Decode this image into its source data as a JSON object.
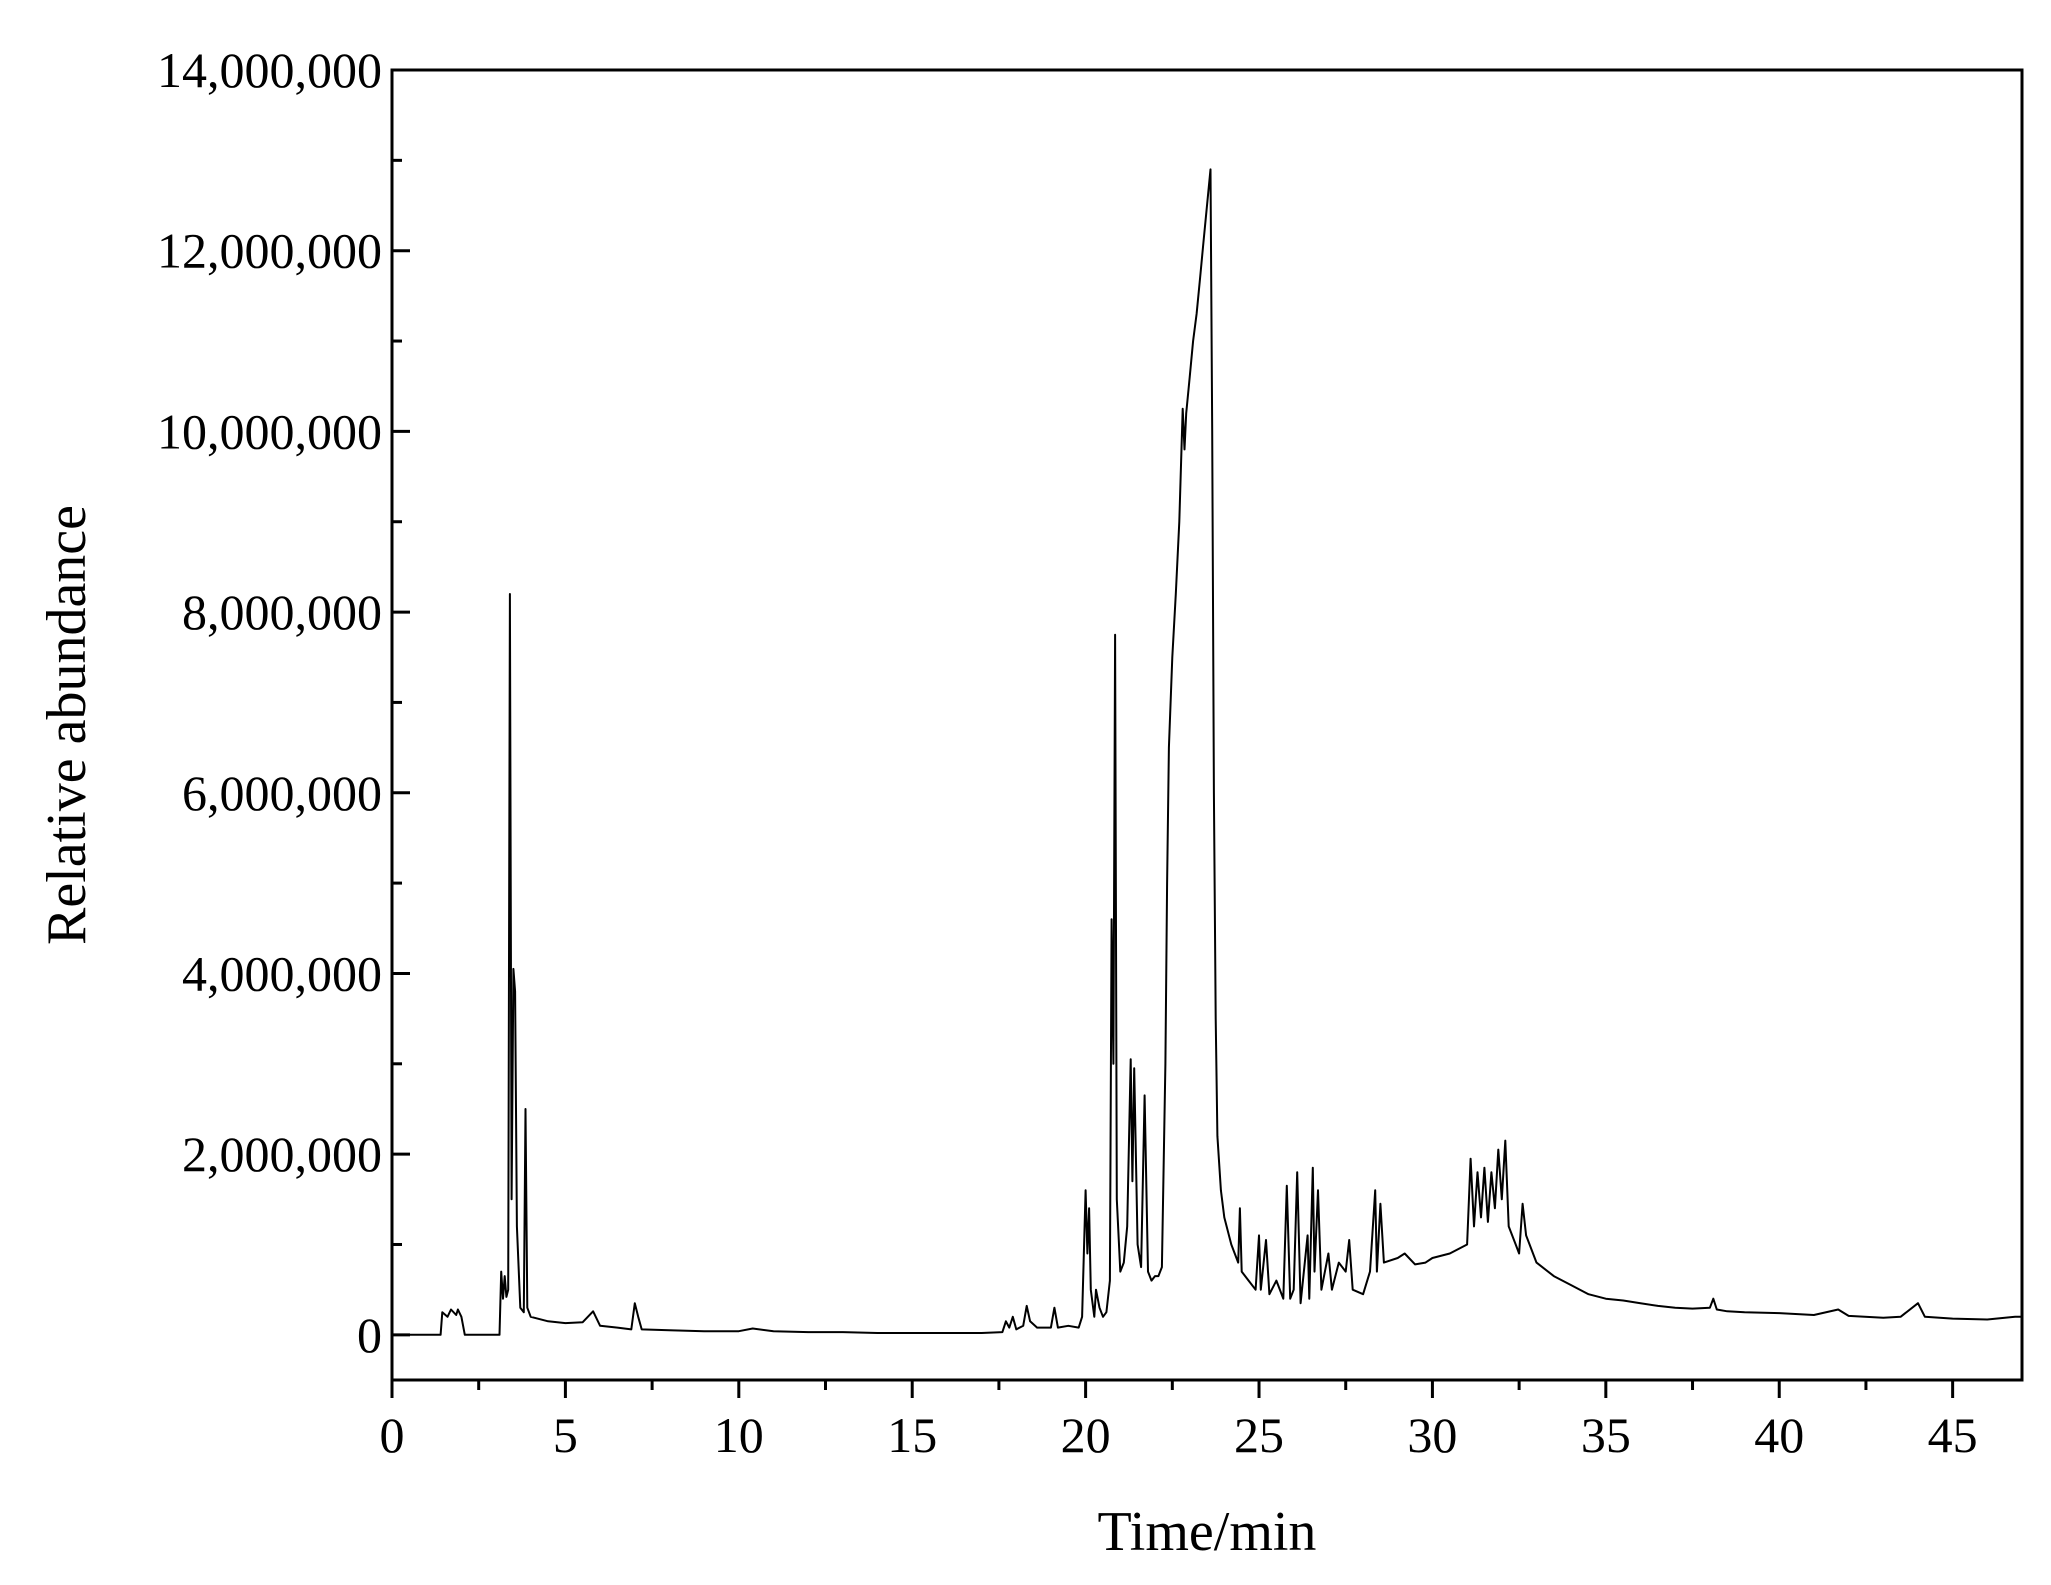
{
  "chart_data": {
    "type": "line",
    "title": "",
    "xlabel": "Time/min",
    "ylabel": "Relative abundance",
    "xlim": [
      0,
      47
    ],
    "ylim": [
      -500000,
      14000000
    ],
    "x_ticks": [
      0,
      5,
      10,
      15,
      20,
      25,
      30,
      35,
      40,
      45
    ],
    "x_tick_labels": [
      "0",
      "5",
      "10",
      "15",
      "20",
      "25",
      "30",
      "35",
      "40",
      "45"
    ],
    "y_ticks": [
      0,
      2000000,
      4000000,
      6000000,
      8000000,
      10000000,
      12000000,
      14000000
    ],
    "y_tick_labels": [
      "0",
      "2,000,000",
      "4,000,000",
      "6,000,000",
      "8,000,000",
      "10,000,000",
      "12,000,000",
      "14,000,000"
    ],
    "grid": false,
    "legend": "none",
    "series": [
      {
        "color": "#000000",
        "points": [
          [
            0,
            0
          ],
          [
            1.4,
            0
          ],
          [
            1.45,
            250000
          ],
          [
            1.6,
            200000
          ],
          [
            1.7,
            280000
          ],
          [
            1.85,
            220000
          ],
          [
            1.9,
            280000
          ],
          [
            2.0,
            200000
          ],
          [
            2.1,
            0
          ],
          [
            3.1,
            0
          ],
          [
            3.15,
            700000
          ],
          [
            3.2,
            400000
          ],
          [
            3.25,
            650000
          ],
          [
            3.3,
            420000
          ],
          [
            3.35,
            500000
          ],
          [
            3.4,
            8200000
          ],
          [
            3.45,
            1500000
          ],
          [
            3.5,
            4050000
          ],
          [
            3.55,
            3800000
          ],
          [
            3.6,
            1200000
          ],
          [
            3.7,
            300000
          ],
          [
            3.8,
            250000
          ],
          [
            3.85,
            2500000
          ],
          [
            3.9,
            300000
          ],
          [
            4.0,
            200000
          ],
          [
            4.5,
            150000
          ],
          [
            5.0,
            130000
          ],
          [
            5.5,
            140000
          ],
          [
            5.8,
            260000
          ],
          [
            6.0,
            100000
          ],
          [
            6.5,
            80000
          ],
          [
            6.9,
            60000
          ],
          [
            7.0,
            350000
          ],
          [
            7.1,
            200000
          ],
          [
            7.2,
            60000
          ],
          [
            8.0,
            50000
          ],
          [
            9.0,
            40000
          ],
          [
            10.0,
            40000
          ],
          [
            10.4,
            70000
          ],
          [
            11.0,
            40000
          ],
          [
            12.0,
            30000
          ],
          [
            13.0,
            30000
          ],
          [
            14.0,
            20000
          ],
          [
            15.0,
            20000
          ],
          [
            16.0,
            20000
          ],
          [
            17.0,
            20000
          ],
          [
            17.6,
            30000
          ],
          [
            17.7,
            150000
          ],
          [
            17.8,
            80000
          ],
          [
            17.9,
            200000
          ],
          [
            18.0,
            60000
          ],
          [
            18.2,
            100000
          ],
          [
            18.3,
            320000
          ],
          [
            18.4,
            150000
          ],
          [
            18.6,
            80000
          ],
          [
            19.0,
            80000
          ],
          [
            19.1,
            300000
          ],
          [
            19.2,
            80000
          ],
          [
            19.5,
            100000
          ],
          [
            19.8,
            80000
          ],
          [
            19.9,
            200000
          ],
          [
            20.0,
            1600000
          ],
          [
            20.05,
            900000
          ],
          [
            20.1,
            1400000
          ],
          [
            20.15,
            500000
          ],
          [
            20.25,
            200000
          ],
          [
            20.3,
            500000
          ],
          [
            20.4,
            300000
          ],
          [
            20.5,
            200000
          ],
          [
            20.6,
            250000
          ],
          [
            20.7,
            600000
          ],
          [
            20.75,
            4600000
          ],
          [
            20.8,
            3000000
          ],
          [
            20.85,
            7750000
          ],
          [
            20.9,
            1500000
          ],
          [
            21.0,
            700000
          ],
          [
            21.1,
            800000
          ],
          [
            21.2,
            1200000
          ],
          [
            21.3,
            3050000
          ],
          [
            21.35,
            1700000
          ],
          [
            21.4,
            2950000
          ],
          [
            21.5,
            1000000
          ],
          [
            21.6,
            750000
          ],
          [
            21.7,
            2650000
          ],
          [
            21.8,
            700000
          ],
          [
            21.9,
            600000
          ],
          [
            22.0,
            650000
          ],
          [
            22.1,
            650000
          ],
          [
            22.2,
            750000
          ],
          [
            22.3,
            3000000
          ],
          [
            22.35,
            5000000
          ],
          [
            22.4,
            6500000
          ],
          [
            22.5,
            7500000
          ],
          [
            22.6,
            8200000
          ],
          [
            22.7,
            9000000
          ],
          [
            22.8,
            10250000
          ],
          [
            22.85,
            9800000
          ],
          [
            22.9,
            10200000
          ],
          [
            23.0,
            10600000
          ],
          [
            23.1,
            11000000
          ],
          [
            23.2,
            11300000
          ],
          [
            23.3,
            11700000
          ],
          [
            23.4,
            12100000
          ],
          [
            23.5,
            12500000
          ],
          [
            23.6,
            12900000
          ],
          [
            23.65,
            10000000
          ],
          [
            23.7,
            6000000
          ],
          [
            23.75,
            3500000
          ],
          [
            23.8,
            2200000
          ],
          [
            23.9,
            1600000
          ],
          [
            24.0,
            1300000
          ],
          [
            24.2,
            1000000
          ],
          [
            24.4,
            800000
          ],
          [
            24.45,
            1400000
          ],
          [
            24.5,
            700000
          ],
          [
            24.7,
            600000
          ],
          [
            24.9,
            500000
          ],
          [
            25.0,
            1100000
          ],
          [
            25.05,
            500000
          ],
          [
            25.2,
            1050000
          ],
          [
            25.3,
            450000
          ],
          [
            25.5,
            600000
          ],
          [
            25.7,
            400000
          ],
          [
            25.8,
            1650000
          ],
          [
            25.9,
            400000
          ],
          [
            26.0,
            500000
          ],
          [
            26.1,
            1800000
          ],
          [
            26.2,
            350000
          ],
          [
            26.4,
            1100000
          ],
          [
            26.45,
            400000
          ],
          [
            26.55,
            1850000
          ],
          [
            26.6,
            700000
          ],
          [
            26.7,
            1600000
          ],
          [
            26.8,
            500000
          ],
          [
            27.0,
            900000
          ],
          [
            27.1,
            500000
          ],
          [
            27.3,
            800000
          ],
          [
            27.5,
            700000
          ],
          [
            27.6,
            1050000
          ],
          [
            27.7,
            500000
          ],
          [
            28.0,
            450000
          ],
          [
            28.2,
            700000
          ],
          [
            28.35,
            1600000
          ],
          [
            28.4,
            700000
          ],
          [
            28.5,
            1450000
          ],
          [
            28.6,
            800000
          ],
          [
            29.0,
            850000
          ],
          [
            29.2,
            900000
          ],
          [
            29.5,
            780000
          ],
          [
            29.8,
            800000
          ],
          [
            30.0,
            850000
          ],
          [
            30.5,
            900000
          ],
          [
            31.0,
            1000000
          ],
          [
            31.1,
            1950000
          ],
          [
            31.2,
            1200000
          ],
          [
            31.3,
            1800000
          ],
          [
            31.4,
            1300000
          ],
          [
            31.5,
            1850000
          ],
          [
            31.6,
            1250000
          ],
          [
            31.7,
            1800000
          ],
          [
            31.8,
            1400000
          ],
          [
            31.9,
            2050000
          ],
          [
            32.0,
            1500000
          ],
          [
            32.1,
            2150000
          ],
          [
            32.2,
            1200000
          ],
          [
            32.4,
            1000000
          ],
          [
            32.5,
            900000
          ],
          [
            32.6,
            1450000
          ],
          [
            32.7,
            1100000
          ],
          [
            33.0,
            800000
          ],
          [
            33.5,
            650000
          ],
          [
            34.0,
            550000
          ],
          [
            34.5,
            450000
          ],
          [
            35.0,
            400000
          ],
          [
            35.5,
            380000
          ],
          [
            36.0,
            350000
          ],
          [
            36.5,
            320000
          ],
          [
            37.0,
            300000
          ],
          [
            37.5,
            290000
          ],
          [
            38.0,
            300000
          ],
          [
            38.1,
            400000
          ],
          [
            38.2,
            280000
          ],
          [
            38.5,
            260000
          ],
          [
            39.0,
            250000
          ],
          [
            40.0,
            240000
          ],
          [
            41.0,
            220000
          ],
          [
            41.7,
            280000
          ],
          [
            42.0,
            210000
          ],
          [
            43.0,
            190000
          ],
          [
            43.5,
            200000
          ],
          [
            44.0,
            350000
          ],
          [
            44.2,
            200000
          ],
          [
            45.0,
            180000
          ],
          [
            46.0,
            170000
          ],
          [
            46.8,
            200000
          ],
          [
            47.0,
            200000
          ]
        ]
      }
    ]
  }
}
